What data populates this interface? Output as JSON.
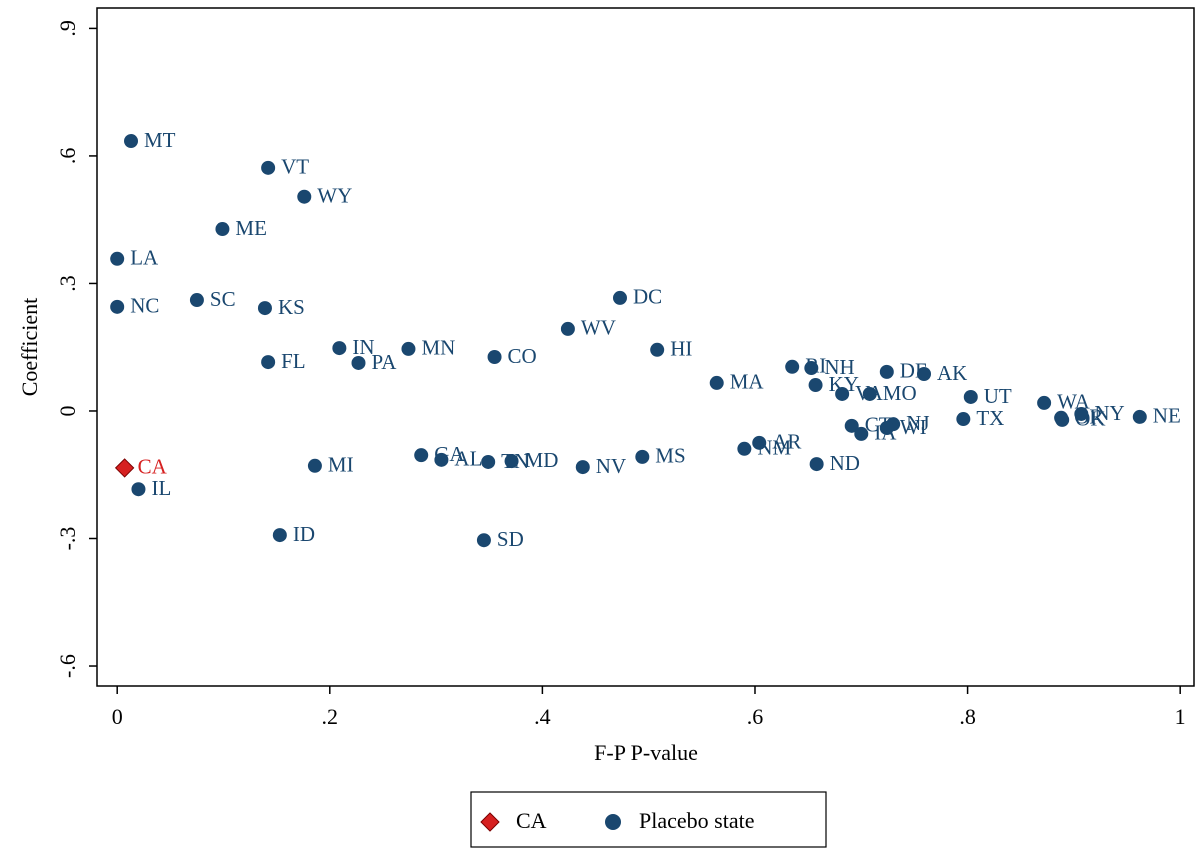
{
  "chart_data": {
    "type": "scatter",
    "x_label": "F-P P-value",
    "y_label": "Coefficient",
    "xlim": [
      -0.019,
      1.013
    ],
    "ylim": [
      -0.647,
      0.948
    ],
    "xticks": [
      0,
      {
        "value": 0.2,
        "label": ".2"
      },
      {
        "value": 0.4,
        "label": ".4"
      },
      {
        "value": 0.6,
        "label": ".6"
      },
      {
        "value": 0.8,
        "label": ".8"
      },
      1
    ],
    "yticks": [
      {
        "value": -0.6,
        "label": "-.6"
      },
      {
        "value": -0.3,
        "label": "-.3"
      },
      0,
      {
        "value": 0.3,
        "label": ".3"
      },
      {
        "value": 0.6,
        "label": ".6"
      },
      {
        "value": 0.9,
        "label": ".9"
      }
    ],
    "series": [
      {
        "name": "CA",
        "color": "#d62020",
        "marker": "diamond",
        "labels": [
          "CA"
        ],
        "x": [
          0.007
        ],
        "values": [
          -0.134
        ]
      },
      {
        "name": "Placebo state",
        "color": "#1a476f",
        "marker": "circle",
        "labels": [
          "MT",
          "VT",
          "WY",
          "ME",
          "LA",
          "NC",
          "SC",
          "KS",
          "IN",
          "MN",
          "PA",
          "FL",
          "DC",
          "WV",
          "CO",
          "HI",
          "MA",
          "RI",
          "NH",
          "KY",
          "VA",
          "MO",
          "DE",
          "AK",
          "UT",
          "WA",
          "TX",
          "OR",
          "OK",
          "NY",
          "NE",
          "CT",
          "IA",
          "NJ",
          "WI",
          "AR",
          "NM",
          "ND",
          "MS",
          "NV",
          "GA",
          "AL",
          "TN",
          "MD",
          "MI",
          "ID",
          "SD",
          "IL"
        ],
        "x": [
          0.013,
          0.142,
          0.176,
          0.099,
          0.0,
          0.0,
          0.075,
          0.139,
          0.209,
          0.274,
          0.227,
          0.142,
          0.473,
          0.424,
          0.355,
          0.508,
          0.564,
          0.635,
          0.653,
          0.657,
          0.682,
          0.708,
          0.724,
          0.759,
          0.803,
          0.872,
          0.796,
          0.888,
          0.889,
          0.907,
          0.962,
          0.691,
          0.7,
          0.73,
          0.724,
          0.604,
          0.59,
          0.658,
          0.494,
          0.438,
          0.286,
          0.305,
          0.349,
          0.371,
          0.186,
          0.153,
          0.345,
          0.02
        ],
        "values": [
          0.635,
          0.572,
          0.504,
          0.428,
          0.358,
          0.245,
          0.261,
          0.242,
          0.148,
          0.146,
          0.113,
          0.115,
          0.266,
          0.193,
          0.127,
          0.144,
          0.066,
          0.104,
          0.101,
          0.061,
          0.04,
          0.04,
          0.092,
          0.087,
          0.033,
          0.019,
          -0.019,
          -0.016,
          -0.021,
          -0.007,
          -0.014,
          -0.035,
          -0.054,
          -0.031,
          -0.04,
          -0.075,
          -0.089,
          -0.125,
          -0.108,
          -0.132,
          -0.104,
          -0.115,
          -0.12,
          -0.118,
          -0.129,
          -0.292,
          -0.304,
          -0.184
        ]
      }
    ]
  }
}
